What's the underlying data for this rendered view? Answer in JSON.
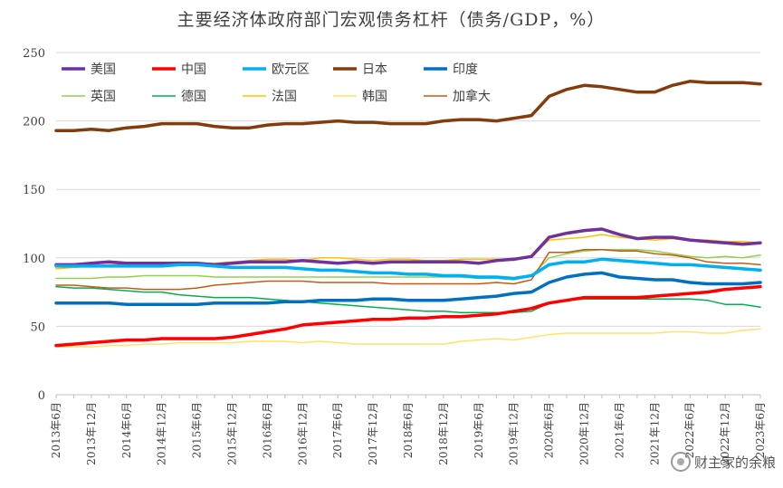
{
  "chart_data": {
    "type": "line",
    "title": "主要经济体政府部门宏观债务杠杆（债务/GDP，%）",
    "ylim": [
      0,
      250
    ],
    "yticks": [
      0,
      50,
      100,
      150,
      200,
      250
    ],
    "grid": "horizontal",
    "legend_position": "top-left",
    "x": [
      "2013年6月",
      "2013年9月",
      "2013年12月",
      "2014年3月",
      "2014年6月",
      "2014年9月",
      "2014年12月",
      "2015年3月",
      "2015年6月",
      "2015年9月",
      "2015年12月",
      "2016年3月",
      "2016年6月",
      "2016年9月",
      "2016年12月",
      "2017年3月",
      "2017年6月",
      "2017年9月",
      "2017年12月",
      "2018年3月",
      "2018年6月",
      "2018年9月",
      "2018年12月",
      "2019年3月",
      "2019年6月",
      "2019年9月",
      "2019年12月",
      "2020年3月",
      "2020年6月",
      "2020年9月",
      "2020年12月",
      "2021年3月",
      "2021年6月",
      "2021年9月",
      "2021年12月",
      "2022年3月",
      "2022年6月",
      "2022年9月",
      "2022年12月",
      "2023年3月",
      "2023年6月"
    ],
    "x_tick_labels": [
      "2013年6月",
      "2013年12月",
      "2014年6月",
      "2014年12月",
      "2015年6月",
      "2015年12月",
      "2016年6月",
      "2016年12月",
      "2017年6月",
      "2017年12月",
      "2018年6月",
      "2018年12月",
      "2019年6月",
      "2019年12月",
      "2020年6月",
      "2020年12月",
      "2021年6月",
      "2021年12月",
      "2022年6月",
      "2022年12月",
      "2023年6月"
    ],
    "series": [
      {
        "name": "美国",
        "color": "#7030a0",
        "width": 3.5,
        "values": [
          95,
          95,
          96,
          97,
          96,
          96,
          96,
          96,
          96,
          95,
          96,
          97,
          97,
          97,
          98,
          97,
          96,
          97,
          96,
          97,
          97,
          97,
          97,
          97,
          96,
          98,
          99,
          101,
          115,
          118,
          120,
          121,
          117,
          114,
          115,
          115,
          113,
          112,
          111,
          110,
          111
        ]
      },
      {
        "name": "中国",
        "color": "#ff0000",
        "width": 3.5,
        "values": [
          36,
          37,
          38,
          39,
          40,
          40,
          41,
          41,
          41,
          41,
          42,
          44,
          46,
          48,
          51,
          52,
          53,
          54,
          55,
          55,
          56,
          56,
          57,
          57,
          58,
          59,
          61,
          63,
          67,
          69,
          71,
          71,
          71,
          71,
          72,
          73,
          74,
          75,
          77,
          78,
          79
        ]
      },
      {
        "name": "欧元区",
        "color": "#00b0f0",
        "width": 3.5,
        "values": [
          94,
          94,
          94,
          94,
          94,
          94,
          94,
          95,
          95,
          94,
          93,
          93,
          93,
          93,
          92,
          91,
          91,
          90,
          89,
          89,
          88,
          88,
          87,
          87,
          86,
          86,
          85,
          87,
          95,
          97,
          97,
          99,
          98,
          97,
          96,
          95,
          95,
          94,
          93,
          92,
          91
        ]
      },
      {
        "name": "日本",
        "color": "#843c0c",
        "width": 3.5,
        "values": [
          193,
          193,
          194,
          193,
          195,
          196,
          198,
          198,
          198,
          196,
          195,
          195,
          197,
          198,
          198,
          199,
          200,
          199,
          199,
          198,
          198,
          198,
          200,
          201,
          201,
          200,
          202,
          204,
          218,
          223,
          226,
          225,
          223,
          221,
          221,
          226,
          229,
          228,
          228,
          228,
          227
        ]
      },
      {
        "name": "印度",
        "color": "#0070c0",
        "width": 3.5,
        "values": [
          67,
          67,
          67,
          67,
          66,
          66,
          66,
          66,
          66,
          67,
          67,
          67,
          67,
          68,
          68,
          69,
          69,
          69,
          70,
          70,
          69,
          69,
          69,
          70,
          71,
          72,
          74,
          75,
          82,
          86,
          88,
          89,
          86,
          85,
          84,
          84,
          82,
          81,
          81,
          81,
          82
        ]
      },
      {
        "name": "英国",
        "color": "#92d050",
        "width": 1.5,
        "values": [
          85,
          85,
          85,
          86,
          86,
          87,
          87,
          87,
          87,
          86,
          86,
          86,
          86,
          86,
          86,
          86,
          86,
          86,
          86,
          86,
          86,
          86,
          86,
          86,
          85,
          85,
          84,
          87,
          100,
          103,
          105,
          106,
          106,
          106,
          105,
          103,
          101,
          100,
          101,
          100,
          102
        ]
      },
      {
        "name": "德国",
        "color": "#00b050",
        "width": 1.5,
        "values": [
          79,
          78,
          78,
          77,
          76,
          75,
          75,
          73,
          72,
          71,
          71,
          71,
          70,
          69,
          68,
          67,
          66,
          65,
          64,
          63,
          62,
          61,
          61,
          60,
          60,
          60,
          60,
          61,
          67,
          69,
          70,
          70,
          70,
          70,
          70,
          70,
          70,
          69,
          66,
          66,
          64
        ]
      },
      {
        "name": "法国",
        "color": "#ffc000",
        "width": 1.5,
        "values": [
          92,
          93,
          94,
          95,
          95,
          96,
          96,
          97,
          96,
          96,
          97,
          98,
          99,
          99,
          98,
          100,
          100,
          99,
          98,
          99,
          99,
          98,
          98,
          99,
          99,
          99,
          98,
          101,
          113,
          114,
          115,
          117,
          115,
          114,
          113,
          114,
          113,
          113,
          112,
          112,
          111
        ]
      },
      {
        "name": "韩国",
        "color": "#ffe26b",
        "width": 1.5,
        "values": [
          35,
          35,
          35,
          36,
          36,
          37,
          37,
          38,
          38,
          38,
          38,
          39,
          39,
          39,
          38,
          39,
          38,
          37,
          37,
          37,
          37,
          37,
          37,
          39,
          40,
          41,
          40,
          42,
          44,
          45,
          45,
          45,
          45,
          45,
          45,
          46,
          46,
          45,
          45,
          47,
          48
        ]
      },
      {
        "name": "加拿大",
        "color": "#c55a11",
        "width": 1.5,
        "values": [
          80,
          80,
          79,
          78,
          78,
          77,
          77,
          77,
          78,
          80,
          81,
          82,
          83,
          83,
          83,
          82,
          82,
          82,
          82,
          81,
          81,
          81,
          81,
          81,
          81,
          82,
          81,
          84,
          104,
          104,
          106,
          106,
          105,
          105,
          103,
          102,
          100,
          97,
          96,
          96,
          95
        ]
      }
    ],
    "legend_order": [
      "美国",
      "中国",
      "欧元区",
      "日本",
      "印度",
      "英国",
      "德国",
      "法国",
      "韩国",
      "加拿大"
    ]
  },
  "watermark": {
    "text": "财主家的余粮",
    "icon": "wechat-icon"
  }
}
